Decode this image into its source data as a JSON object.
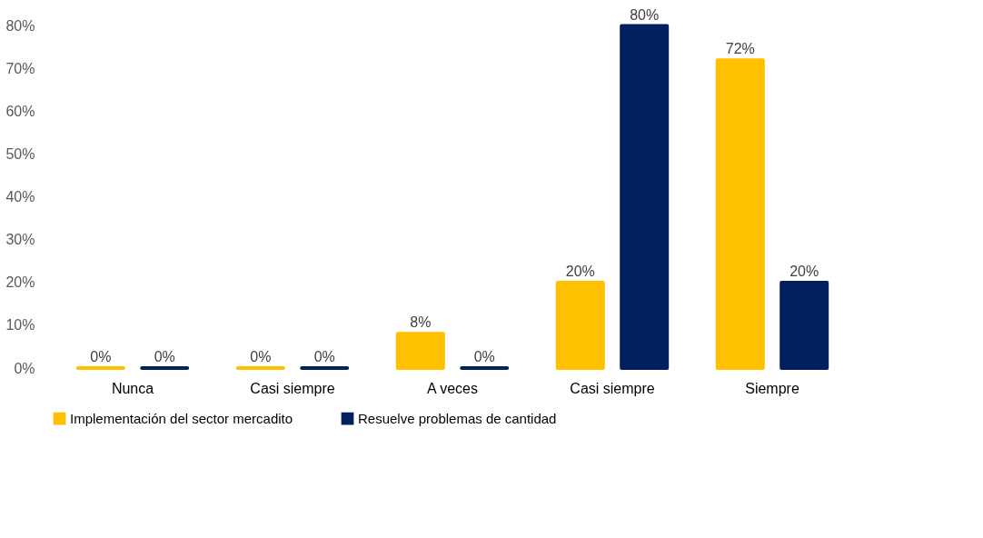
{
  "chart_data": {
    "type": "bar",
    "categories": [
      "Nunca",
      "Casi siempre",
      "A veces",
      "Casi siempre",
      "Siempre"
    ],
    "series": [
      {
        "name": "Implementación del sector mercadito",
        "color": "#ffc000",
        "values": [
          0,
          0,
          8,
          20,
          72
        ],
        "value_labels": [
          "0%",
          "0%",
          "8%",
          "20%",
          "72%"
        ]
      },
      {
        "name": "Resuelve problemas de cantidad",
        "color": "#002060",
        "values": [
          0,
          0,
          0,
          80,
          20
        ],
        "value_labels": [
          "0%",
          "0%",
          "0%",
          "80%",
          "20%"
        ]
      }
    ],
    "ylim": [
      0,
      85
    ],
    "yticks": [
      {
        "value": 0,
        "label": "0%"
      },
      {
        "value": 10,
        "label": "10%"
      },
      {
        "value": 20,
        "label": "20%"
      },
      {
        "value": 30,
        "label": "30%"
      },
      {
        "value": 40,
        "label": "40%"
      },
      {
        "value": 50,
        "label": "50%"
      },
      {
        "value": 60,
        "label": "60%"
      },
      {
        "value": 70,
        "label": "70%"
      },
      {
        "value": 80,
        "label": "80%"
      }
    ],
    "grid": false,
    "legend": "bottom"
  }
}
